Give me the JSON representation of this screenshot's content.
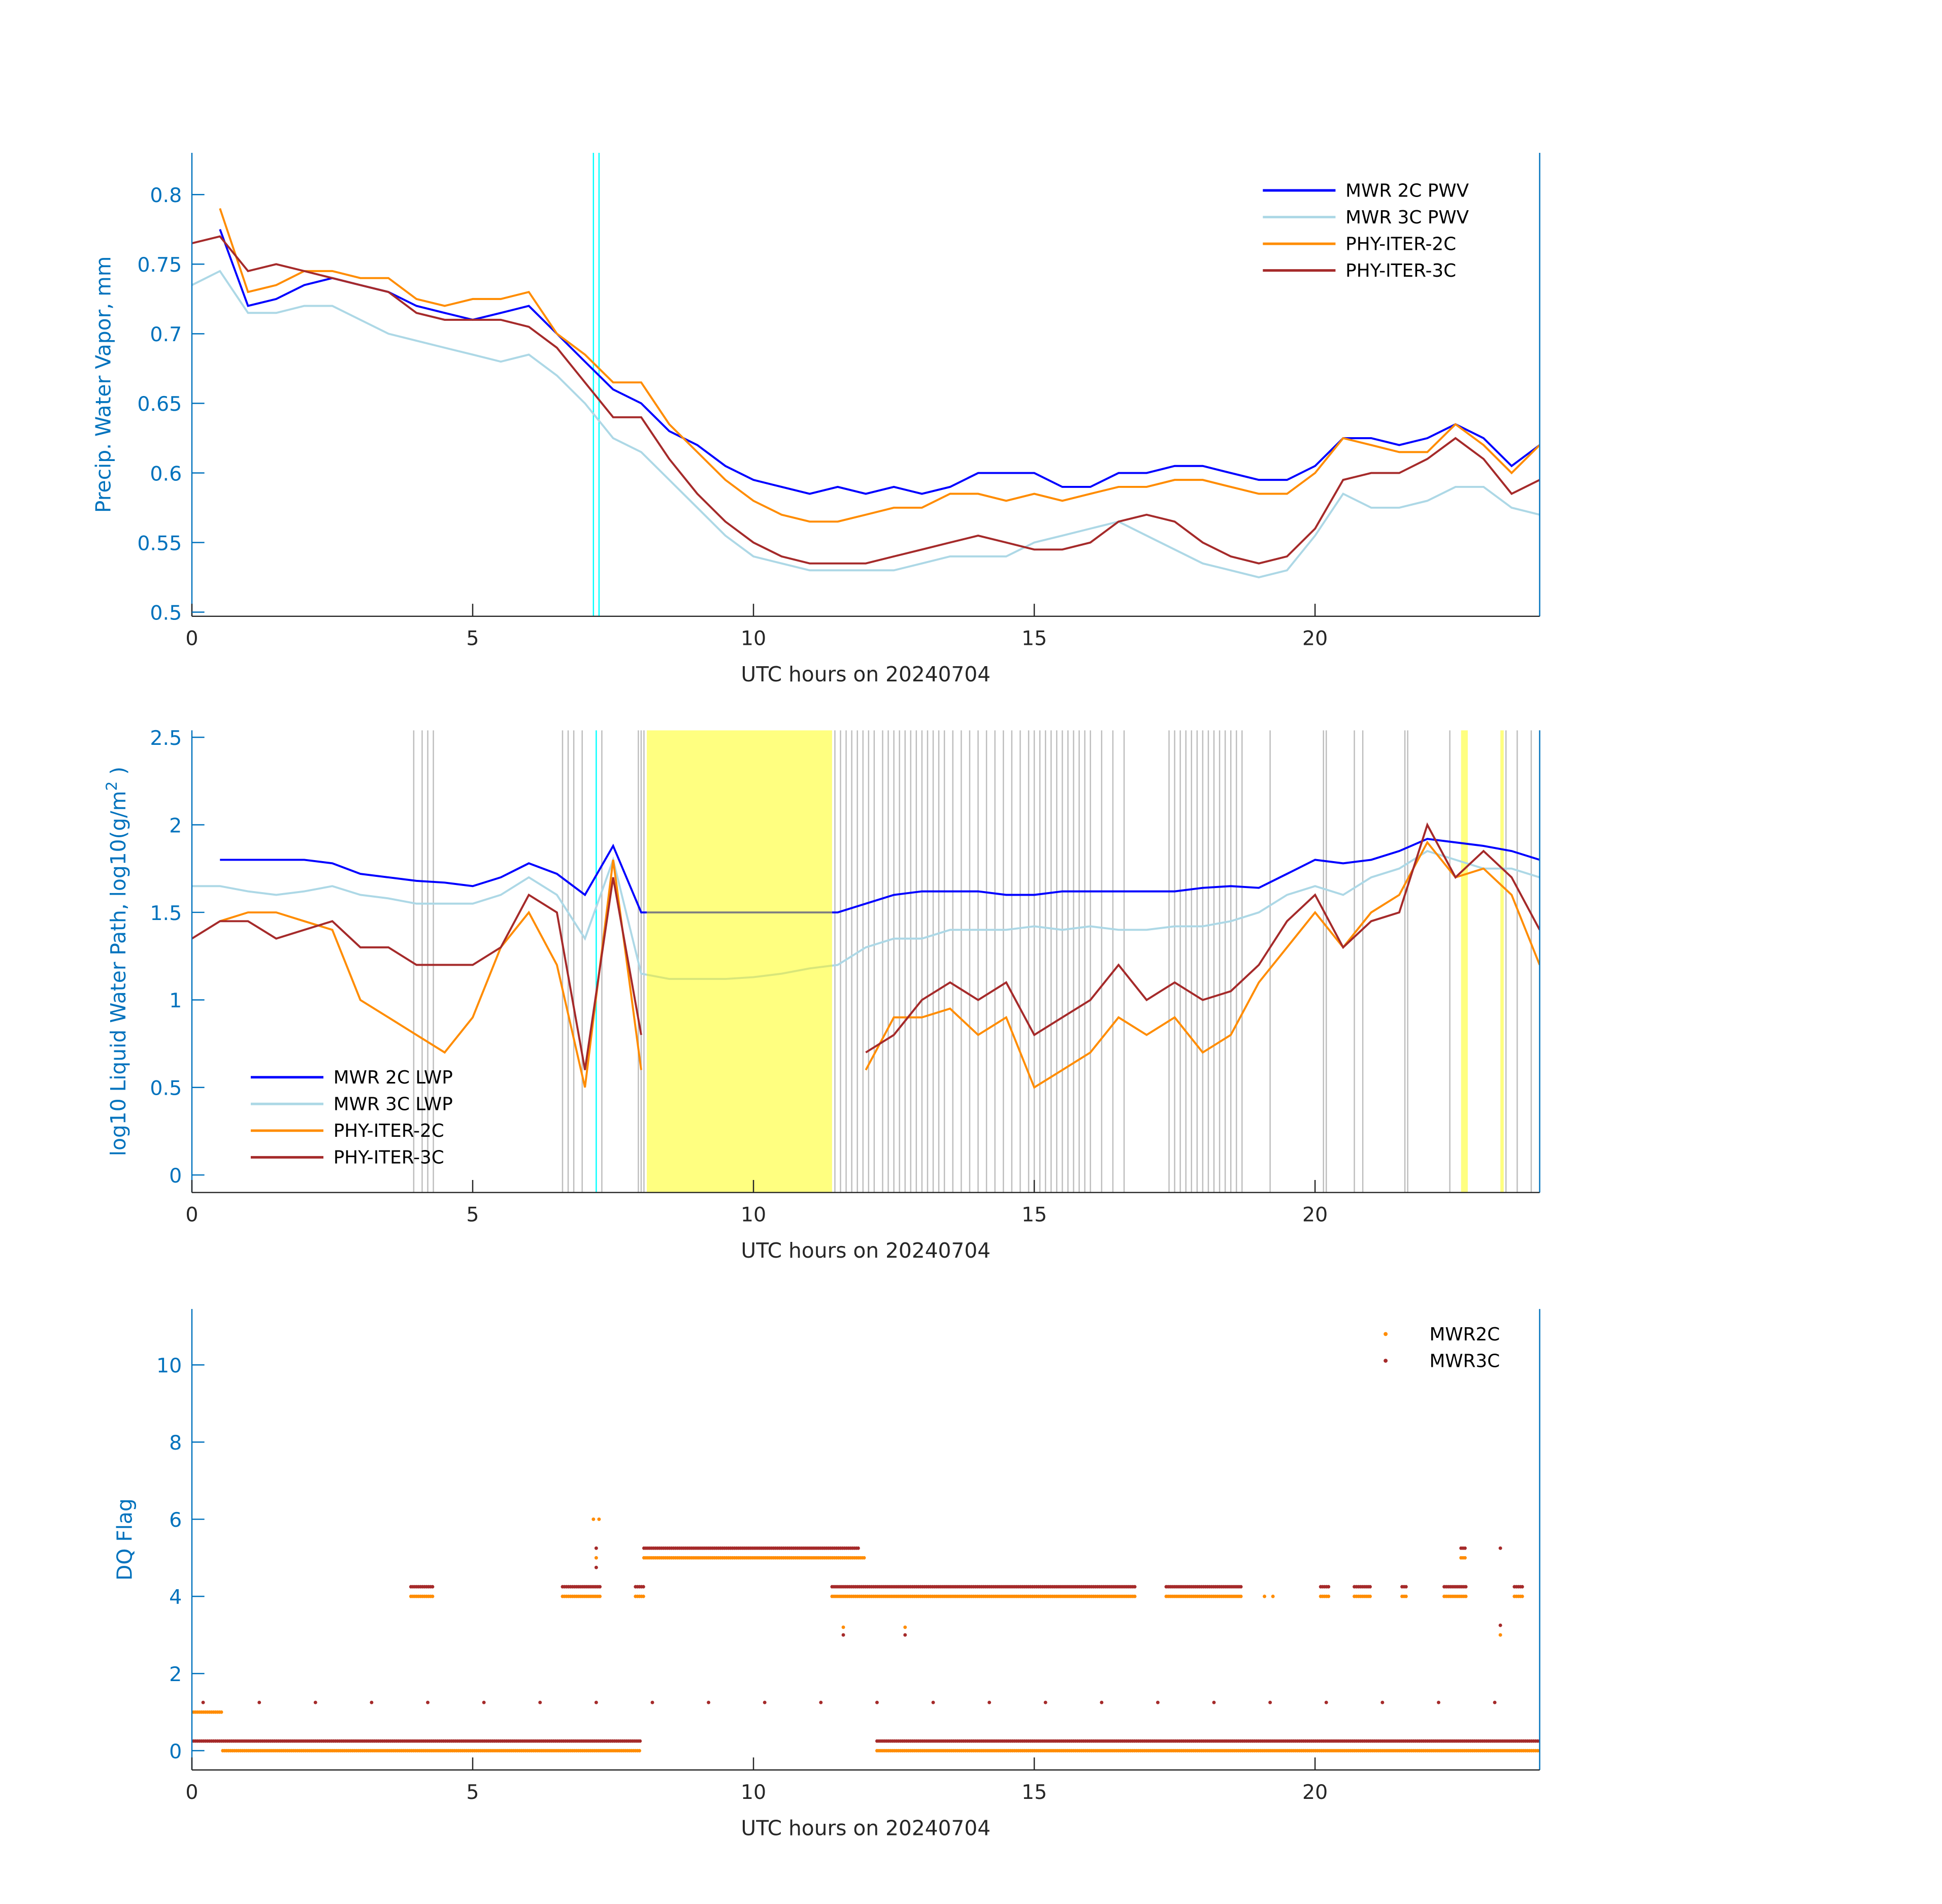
{
  "colors": {
    "mwr2c": "#0000ff",
    "mwr3c": "#add8e6",
    "phy2c": "#ff8c00",
    "phy3c": "#a52a2a",
    "axis_blue": "#0072bd",
    "flag_gray": "#bdbdbd",
    "flag_yellow": "#ffff80",
    "cyan": "#00ffff",
    "masked_2c": "#808080",
    "masked_3c": "#d8e67a"
  },
  "chart_data": [
    {
      "type": "line",
      "xlabel": "UTC hours on 20240704",
      "ylabel": "Precip. Water Vapor, mm",
      "xlim": [
        0,
        24
      ],
      "ylim": [
        0.497,
        0.83
      ],
      "xticks": [
        "0",
        "5",
        "10",
        "15",
        "20"
      ],
      "yticks": [
        "0.5",
        "0.55",
        "0.6",
        "0.65",
        "0.7",
        "0.75",
        "0.8"
      ],
      "legend_position": "top-right",
      "vertical_markers": [
        7.15,
        7.25
      ],
      "x_step_hours": 0.5,
      "series": [
        {
          "name": "MWR 2C PWV",
          "key": "mwr2c",
          "values": [
            null,
            0.775,
            0.72,
            0.725,
            0.735,
            0.74,
            0.735,
            0.73,
            0.72,
            0.715,
            0.71,
            0.715,
            0.72,
            0.7,
            0.68,
            0.66,
            0.65,
            0.63,
            0.62,
            0.605,
            0.595,
            0.59,
            0.585,
            0.59,
            0.585,
            0.59,
            0.585,
            0.59,
            0.6,
            0.6,
            0.6,
            0.59,
            0.59,
            0.6,
            0.6,
            0.605,
            0.605,
            0.6,
            0.595,
            0.595,
            0.605,
            0.625,
            0.625,
            0.62,
            0.625,
            0.635,
            0.625,
            0.605,
            0.62
          ]
        },
        {
          "name": "MWR 3C PWV",
          "key": "mwr3c",
          "values": [
            0.735,
            0.745,
            0.715,
            0.715,
            0.72,
            0.72,
            0.71,
            0.7,
            0.695,
            0.69,
            0.685,
            0.68,
            0.685,
            0.67,
            0.65,
            0.625,
            0.615,
            0.595,
            0.575,
            0.555,
            0.54,
            0.535,
            0.53,
            0.53,
            0.53,
            0.53,
            0.535,
            0.54,
            0.54,
            0.54,
            0.55,
            0.555,
            0.56,
            0.565,
            0.555,
            0.545,
            0.535,
            0.53,
            0.525,
            0.53,
            0.555,
            0.585,
            0.575,
            0.575,
            0.58,
            0.59,
            0.59,
            0.575,
            0.57
          ]
        },
        {
          "name": "PHY-ITER-2C",
          "key": "phy2c",
          "values": [
            null,
            0.79,
            0.73,
            0.735,
            0.745,
            0.745,
            0.74,
            0.74,
            0.725,
            0.72,
            0.725,
            0.725,
            0.73,
            0.7,
            0.685,
            0.665,
            0.665,
            0.635,
            0.615,
            0.595,
            0.58,
            0.57,
            0.565,
            0.565,
            0.57,
            0.575,
            0.575,
            0.585,
            0.585,
            0.58,
            0.585,
            0.58,
            0.585,
            0.59,
            0.59,
            0.595,
            0.595,
            0.59,
            0.585,
            0.585,
            0.6,
            0.625,
            0.62,
            0.615,
            0.615,
            0.635,
            0.62,
            0.6,
            0.62
          ]
        },
        {
          "name": "PHY-ITER-3C",
          "key": "phy3c",
          "values": [
            0.765,
            0.77,
            0.745,
            0.75,
            0.745,
            0.74,
            0.735,
            0.73,
            0.715,
            0.71,
            0.71,
            0.71,
            0.705,
            0.69,
            0.665,
            0.64,
            0.64,
            0.61,
            0.585,
            0.565,
            0.55,
            0.54,
            0.535,
            0.535,
            0.535,
            0.54,
            0.545,
            0.55,
            0.555,
            0.55,
            0.545,
            0.545,
            0.55,
            0.565,
            0.57,
            0.565,
            0.55,
            0.54,
            0.535,
            0.54,
            0.56,
            0.595,
            0.6,
            0.6,
            0.61,
            0.625,
            0.61,
            0.585,
            0.595
          ]
        }
      ]
    },
    {
      "type": "line",
      "xlabel": "UTC hours on 20240704",
      "ylabel": "log10 Liquid Water Path, log10(g/m",
      "ylabel_sup": "2",
      "ylabel_end": " )",
      "xlim": [
        0,
        24
      ],
      "ylim": [
        -0.1,
        2.54
      ],
      "xticks": [
        "0",
        "5",
        "10",
        "15",
        "20"
      ],
      "yticks": [
        "0",
        "0.5",
        "1",
        "1.5",
        "2",
        "2.5"
      ],
      "legend_position": "bottom-left",
      "highlight_intervals": [
        [
          8.1,
          11.4
        ],
        [
          22.6,
          22.72
        ],
        [
          23.3,
          23.36
        ]
      ],
      "flag_lines": [
        3.95,
        4.1,
        4.2,
        4.3,
        6.6,
        6.7,
        6.8,
        6.95,
        7.3,
        7.95,
        8.0,
        8.05,
        11.45,
        11.55,
        11.65,
        11.75,
        11.85,
        11.95,
        12.05,
        12.15,
        12.3,
        12.4,
        12.5,
        12.6,
        12.7,
        12.8,
        12.9,
        13.0,
        13.1,
        13.2,
        13.3,
        13.4,
        13.55,
        13.7,
        13.85,
        14.0,
        14.15,
        14.3,
        14.45,
        14.6,
        14.75,
        14.9,
        15.0,
        15.1,
        15.2,
        15.3,
        15.4,
        15.5,
        15.6,
        15.7,
        15.8,
        15.9,
        16.0,
        16.2,
        16.4,
        16.6,
        17.4,
        17.5,
        17.6,
        17.7,
        17.8,
        17.9,
        18.0,
        18.1,
        18.2,
        18.3,
        18.4,
        18.5,
        18.6,
        18.7,
        19.2,
        20.15,
        20.2,
        20.7,
        20.85,
        21.6,
        21.65,
        22.4,
        23.4,
        23.6,
        23.85
      ],
      "cyan_markers": [
        7.2
      ],
      "masked_interval": [
        8.1,
        11.4
      ],
      "x_step_hours": 0.5,
      "series": [
        {
          "name": "MWR 2C LWP",
          "key": "mwr2c",
          "values": [
            null,
            1.8,
            1.8,
            1.8,
            1.8,
            1.78,
            1.72,
            1.7,
            1.68,
            1.67,
            1.65,
            1.7,
            1.78,
            1.72,
            1.6,
            1.88,
            1.5,
            1.5,
            1.5,
            1.5,
            1.5,
            1.5,
            1.5,
            1.5,
            1.55,
            1.6,
            1.62,
            1.62,
            1.62,
            1.6,
            1.6,
            1.62,
            1.62,
            1.62,
            1.62,
            1.62,
            1.64,
            1.65,
            1.64,
            1.72,
            1.8,
            1.78,
            1.8,
            1.85,
            1.92,
            1.9,
            1.88,
            1.85,
            1.8
          ]
        },
        {
          "name": "MWR 3C LWP",
          "key": "mwr3c",
          "values": [
            1.65,
            1.65,
            1.62,
            1.6,
            1.62,
            1.65,
            1.6,
            1.58,
            1.55,
            1.55,
            1.55,
            1.6,
            1.7,
            1.6,
            1.35,
            1.8,
            1.15,
            1.12,
            1.12,
            1.12,
            1.13,
            1.15,
            1.18,
            1.2,
            1.3,
            1.35,
            1.35,
            1.4,
            1.4,
            1.4,
            1.42,
            1.4,
            1.42,
            1.4,
            1.4,
            1.42,
            1.42,
            1.45,
            1.5,
            1.6,
            1.65,
            1.6,
            1.7,
            1.75,
            1.85,
            1.8,
            1.75,
            1.75,
            1.7
          ]
        },
        {
          "name": "PHY-ITER-2C",
          "key": "phy2c",
          "values": [
            null,
            1.45,
            1.5,
            1.5,
            1.45,
            1.4,
            1.0,
            0.9,
            0.8,
            0.7,
            0.9,
            1.3,
            1.5,
            1.2,
            0.5,
            1.8,
            0.6,
            null,
            null,
            null,
            null,
            null,
            null,
            null,
            0.6,
            0.9,
            0.9,
            0.95,
            0.8,
            0.9,
            0.5,
            0.6,
            0.7,
            0.9,
            0.8,
            0.9,
            0.7,
            0.8,
            1.1,
            1.3,
            1.5,
            1.3,
            1.5,
            1.6,
            1.9,
            1.7,
            1.75,
            1.6,
            1.2
          ]
        },
        {
          "name": "PHY-ITER-3C",
          "key": "phy3c",
          "values": [
            1.35,
            1.45,
            1.45,
            1.35,
            1.4,
            1.45,
            1.3,
            1.3,
            1.2,
            1.2,
            1.2,
            1.3,
            1.6,
            1.5,
            0.6,
            1.7,
            0.8,
            null,
            null,
            null,
            null,
            null,
            null,
            null,
            0.7,
            0.8,
            1.0,
            1.1,
            1.0,
            1.1,
            0.8,
            0.9,
            1.0,
            1.2,
            1.0,
            1.1,
            1.0,
            1.05,
            1.2,
            1.45,
            1.6,
            1.3,
            1.45,
            1.5,
            2.0,
            1.7,
            1.85,
            1.7,
            1.4
          ]
        }
      ]
    },
    {
      "type": "scatter",
      "xlabel": "UTC hours on 20240704",
      "ylabel": "DQ Flag",
      "xlim": [
        0,
        24
      ],
      "ylim": [
        -0.5,
        11.45
      ],
      "xticks": [
        "0",
        "5",
        "10",
        "15",
        "20"
      ],
      "yticks": [
        "0",
        "2",
        "4",
        "6",
        "8",
        "10"
      ],
      "legend_position": "top-right",
      "series": [
        {
          "name": "MWR2C",
          "key": "phy2c",
          "runs": [
            [
              1,
              0,
              0.55
            ],
            [
              0,
              0.55,
              8.0
            ],
            [
              4,
              3.9,
              4.3
            ],
            [
              4,
              6.6,
              7.3
            ],
            [
              4,
              7.9,
              8.05
            ],
            [
              5,
              8.05,
              12.0
            ],
            [
              4,
              11.4,
              16.8
            ],
            [
              4,
              17.35,
              18.7
            ],
            [
              0,
              12.2,
              24
            ],
            [
              4,
              20.1,
              20.25
            ],
            [
              4,
              20.7,
              21.0
            ],
            [
              4,
              21.55,
              21.65
            ],
            [
              4,
              22.3,
              22.7
            ],
            [
              5,
              22.6,
              22.7
            ],
            [
              4,
              23.55,
              23.7
            ]
          ],
          "points": [
            [
              7.15,
              6
            ],
            [
              7.25,
              6
            ],
            [
              7.2,
              5
            ],
            [
              11.6,
              3.2
            ],
            [
              12.7,
              3.2
            ],
            [
              23.3,
              3.0
            ],
            [
              19.1,
              4
            ],
            [
              19.25,
              4
            ]
          ]
        },
        {
          "name": "MWR3C",
          "key": "phy3c",
          "runs": [
            [
              0.25,
              0,
              8.0
            ],
            [
              5.25,
              8.05,
              11.9
            ],
            [
              4.25,
              11.4,
              16.8
            ],
            [
              4.25,
              17.35,
              18.7
            ],
            [
              0.25,
              12.2,
              24
            ],
            [
              4.25,
              20.1,
              20.25
            ],
            [
              4.25,
              20.7,
              21.0
            ],
            [
              4.25,
              21.55,
              21.65
            ],
            [
              4.25,
              22.3,
              22.7
            ],
            [
              5.25,
              22.6,
              22.7
            ],
            [
              4.25,
              23.55,
              23.7
            ],
            [
              4.25,
              3.9,
              4.3
            ],
            [
              4.25,
              6.6,
              7.3
            ],
            [
              4.25,
              7.9,
              8.05
            ]
          ],
          "points": [
            [
              0.2,
              1.25
            ],
            [
              1.2,
              1.25
            ],
            [
              2.2,
              1.25
            ],
            [
              3.2,
              1.25
            ],
            [
              4.2,
              1.25
            ],
            [
              5.2,
              1.25
            ],
            [
              6.2,
              1.25
            ],
            [
              7.2,
              1.25
            ],
            [
              8.2,
              1.25
            ],
            [
              9.2,
              1.25
            ],
            [
              10.2,
              1.25
            ],
            [
              11.2,
              1.25
            ],
            [
              12.2,
              1.25
            ],
            [
              13.2,
              1.25
            ],
            [
              14.2,
              1.25
            ],
            [
              15.2,
              1.25
            ],
            [
              16.2,
              1.25
            ],
            [
              17.2,
              1.25
            ],
            [
              18.2,
              1.25
            ],
            [
              19.2,
              1.25
            ],
            [
              20.2,
              1.25
            ],
            [
              21.2,
              1.25
            ],
            [
              22.2,
              1.25
            ],
            [
              23.2,
              1.25
            ],
            [
              7.2,
              4.75
            ],
            [
              7.2,
              5.25
            ],
            [
              23.3,
              3.25
            ],
            [
              23.3,
              5.25
            ],
            [
              11.6,
              3.0
            ],
            [
              12.7,
              3.0
            ]
          ]
        }
      ]
    }
  ]
}
